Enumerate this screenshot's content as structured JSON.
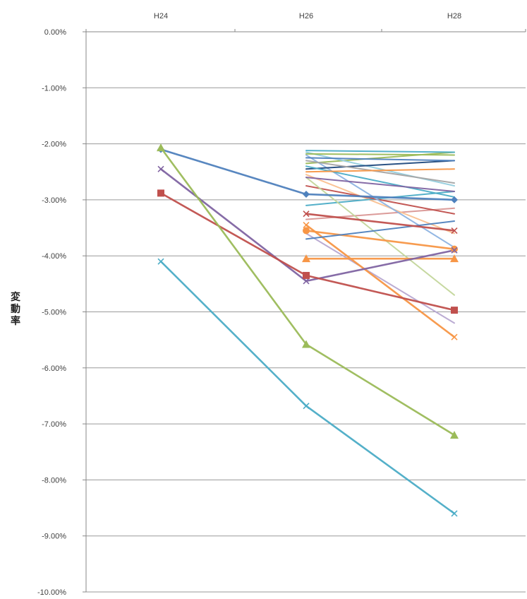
{
  "chart_data": {
    "type": "line",
    "title": "",
    "xlabel": "",
    "ylabel": "変動率",
    "categories": [
      "H24",
      "H26",
      "H28"
    ],
    "ylim": [
      -10,
      0
    ],
    "y_tick_labels": [
      "0.00%",
      "-1.00%",
      "-2.00%",
      "-3.00%",
      "-4.00%",
      "-5.00%",
      "-6.00%",
      "-7.00%",
      "-8.00%",
      "-9.00%",
      "-10.00%"
    ],
    "x_axis_position": "top",
    "grid": {
      "horizontal": true,
      "vertical": false
    },
    "legend": "none",
    "series": [
      {
        "color": "#4bacc6",
        "marker": "x",
        "values": [
          -4.1,
          -6.68,
          -8.6
        ]
      },
      {
        "color": "#9bbb59",
        "marker": "triangle",
        "values": [
          -2.07,
          -5.58,
          -7.2
        ]
      },
      {
        "color": "#4f81bd",
        "marker": "diamond",
        "values": [
          -2.1,
          -2.9,
          -3.0
        ]
      },
      {
        "color": "#c0504d",
        "marker": "square",
        "values": [
          -2.88,
          -4.35,
          -4.97
        ]
      },
      {
        "color": "#8064a2",
        "marker": "x",
        "values": [
          -2.45,
          -4.45,
          -3.9
        ]
      },
      {
        "color": "#4bacc6",
        "marker": "none",
        "values": [
          null,
          -2.12,
          -2.15
        ]
      },
      {
        "color": "#9bbb59",
        "marker": "none",
        "values": [
          null,
          -2.18,
          -2.2
        ]
      },
      {
        "color": "#4f81bd",
        "marker": "none",
        "values": [
          null,
          -2.25,
          -2.3
        ]
      },
      {
        "color": "#f79646",
        "marker": "none",
        "values": [
          null,
          -2.5,
          -2.45
        ]
      },
      {
        "color": "#a5a5a5",
        "marker": "none",
        "values": [
          null,
          -2.3,
          -2.7
        ]
      },
      {
        "color": "#8064a2",
        "marker": "none",
        "values": [
          null,
          -2.6,
          -2.85
        ]
      },
      {
        "color": "#4bacc6",
        "marker": "none",
        "values": [
          null,
          -2.4,
          -2.95
        ]
      },
      {
        "color": "#1f497d",
        "marker": "none",
        "values": [
          null,
          -2.45,
          -2.3
        ]
      },
      {
        "color": "#c0504d",
        "marker": "x",
        "values": [
          null,
          -3.25,
          -3.55
        ]
      },
      {
        "color": "#4f81bd",
        "marker": "none",
        "values": [
          null,
          -3.7,
          -3.38
        ]
      },
      {
        "color": "#f79646",
        "marker": "circle",
        "values": [
          null,
          -3.55,
          -3.88
        ]
      },
      {
        "color": "#f79646",
        "marker": "triangle",
        "values": [
          null,
          -4.05,
          -4.05
        ]
      },
      {
        "color": "#8db3e2",
        "marker": "none",
        "values": [
          null,
          -2.2,
          -3.85
        ]
      },
      {
        "color": "#c3d69b",
        "marker": "none",
        "values": [
          null,
          -2.6,
          -4.7
        ]
      },
      {
        "color": "#f79646",
        "marker": "x",
        "values": [
          null,
          -3.45,
          -5.45
        ]
      },
      {
        "color": "#b7a8d1",
        "marker": "none",
        "values": [
          null,
          -3.6,
          -5.2
        ]
      },
      {
        "color": "#c0504d",
        "marker": "none",
        "values": [
          null,
          -2.75,
          -3.25
        ]
      },
      {
        "color": "#93cddd",
        "marker": "none",
        "values": [
          null,
          -2.15,
          -2.75
        ]
      },
      {
        "color": "#9bbb59",
        "marker": "none",
        "values": [
          null,
          -2.35,
          -2.15
        ]
      },
      {
        "color": "#4bacc6",
        "marker": "none",
        "values": [
          null,
          -3.1,
          -2.85
        ]
      },
      {
        "color": "#fac090",
        "marker": "none",
        "values": [
          null,
          -2.55,
          -3.6
        ]
      },
      {
        "color": "#d99694",
        "marker": "none",
        "values": [
          null,
          -3.35,
          -3.15
        ]
      }
    ]
  }
}
